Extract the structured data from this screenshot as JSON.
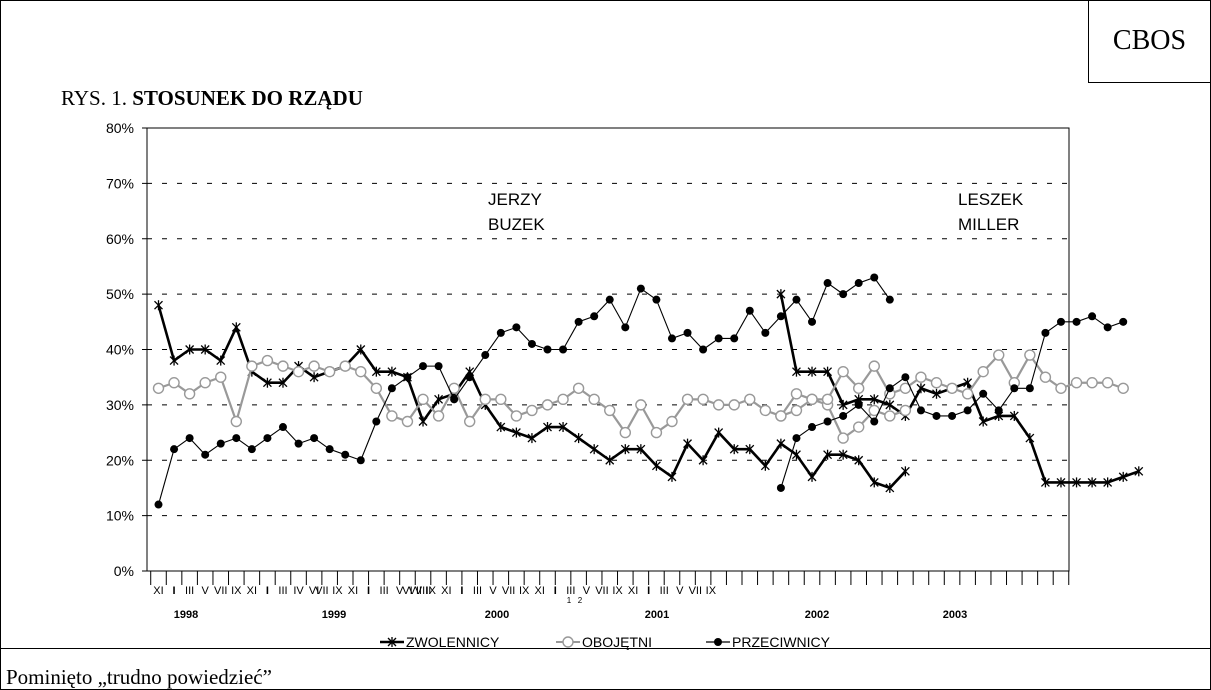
{
  "brand": "CBOS",
  "figure_prefix": "RYS. 1. ",
  "figure_title": "STOSUNEK DO RZĄDU",
  "footnote": "Pominięto „trudno powiedzieć”",
  "chart_data": {
    "type": "line",
    "ylim": [
      0,
      80
    ],
    "yticks": [
      "0%",
      "10%",
      "20%",
      "30%",
      "40%",
      "50%",
      "60%",
      "70%",
      "80%"
    ],
    "x_labels": [
      "XI",
      "I",
      "III",
      "V",
      "VII",
      "IX",
      "XI",
      "I",
      "III",
      "IV",
      "VI",
      "VII",
      "IX",
      "XI",
      "I",
      "III",
      "V",
      "VI",
      "VII",
      "VIII",
      "IX",
      "XI",
      "I",
      "III",
      "V",
      "VII",
      "IX",
      "XI",
      "I",
      "III",
      "V",
      "VII",
      "IX",
      "XI",
      "I",
      "III",
      "V",
      "VII",
      "IX"
    ],
    "year_labels": [
      "1998",
      "1999",
      "2000",
      "2001",
      "2002",
      "2003"
    ],
    "sub_labels": [
      "1",
      "2"
    ],
    "annotations": [
      {
        "lines": [
          "JERZY",
          "BUZEK"
        ]
      },
      {
        "lines": [
          "LESZEK",
          "MILLER"
        ]
      }
    ],
    "series": [
      {
        "name": "ZWOLENNICY",
        "color": "#000000",
        "segments": [
          [
            48,
            38,
            40,
            40,
            38,
            44,
            36,
            34,
            34,
            37,
            35,
            36,
            37,
            40,
            36,
            36,
            35,
            27,
            31,
            32,
            36,
            30,
            26,
            25,
            24,
            26,
            26,
            24,
            22,
            20,
            22,
            22,
            19,
            17,
            23,
            20,
            25,
            22,
            22,
            19,
            23,
            21,
            17,
            21,
            21,
            20,
            16,
            15,
            18
          ],
          [
            50,
            36,
            36,
            36,
            30,
            31,
            31,
            30,
            28,
            33,
            32,
            33,
            34,
            27,
            28,
            28,
            24,
            16,
            16,
            16,
            16,
            16,
            17,
            18
          ]
        ]
      },
      {
        "name": "OBOJĘTNI",
        "color": "#999999",
        "segments": [
          [
            33,
            34,
            32,
            34,
            35,
            27,
            37,
            38,
            37,
            36,
            37,
            36,
            37,
            36,
            33,
            28,
            27,
            31,
            28,
            33,
            27,
            31,
            31,
            28,
            29,
            30,
            31,
            33,
            31,
            29,
            25,
            30,
            25,
            27,
            31,
            31,
            30,
            30,
            31,
            29,
            28,
            29,
            31,
            30,
            24,
            26,
            29,
            28,
            29
          ],
          [
            28,
            32,
            31,
            31,
            36,
            33,
            37,
            32,
            33,
            35,
            34,
            33,
            32,
            36,
            39,
            34,
            39,
            35,
            33,
            34,
            34,
            34,
            33
          ]
        ]
      },
      {
        "name": "PRZECIWNICY",
        "color": "#000000",
        "segments": [
          [
            12,
            22,
            24,
            21,
            23,
            24,
            22,
            24,
            26,
            23,
            24,
            22,
            21,
            20,
            27,
            33,
            35,
            37,
            37,
            31,
            35,
            39,
            43,
            44,
            41,
            40,
            40,
            45,
            46,
            49,
            44,
            51,
            49,
            42,
            43,
            40,
            42,
            42,
            47,
            43,
            46,
            49,
            45,
            52,
            50,
            52,
            53,
            49
          ],
          [
            15,
            24,
            26,
            27,
            28,
            30,
            27,
            33,
            35,
            29,
            28,
            28,
            29,
            32,
            29,
            33,
            33,
            43,
            45,
            45,
            46,
            44,
            45
          ]
        ]
      }
    ]
  }
}
